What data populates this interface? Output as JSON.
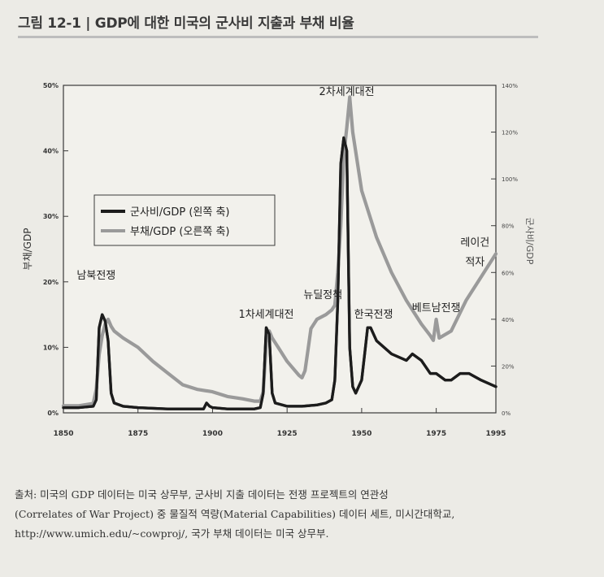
{
  "figure": {
    "title": "그림 12-1 | GDP에 대한 미국의 군사비 지출과 부채 비율"
  },
  "chart_data": {
    "type": "line",
    "title": "그림 12-1 | GDP에 대한 미국의 군사비 지출과 부채 비율",
    "xlabel": "",
    "ylabel": "부채/GDP",
    "ylabel_right": "군사비/GDP",
    "xlim": [
      1850,
      1995
    ],
    "ylim": [
      0,
      50
    ],
    "ylim_right": [
      0,
      140
    ],
    "x_ticks": [
      "1850",
      "1875",
      "1900",
      "1925",
      "1950",
      "1975",
      "1995"
    ],
    "x_tick_values": [
      1850,
      1875,
      1900,
      1925,
      1950,
      1975,
      1995
    ],
    "y_ticks": [
      "0%",
      "10%",
      "20%",
      "30%",
      "40%",
      "50%"
    ],
    "y_tick_values": [
      0,
      10,
      20,
      30,
      40,
      50
    ],
    "y_ticks_right": [
      "0%",
      "20%",
      "40%",
      "60%",
      "80%",
      "100%",
      "120%",
      "140%"
    ],
    "y_tick_values_right": [
      0,
      20,
      40,
      60,
      80,
      100,
      120,
      140
    ],
    "grid": false,
    "legend_position": "upper-left",
    "series": [
      {
        "name": "군사비/GDP (왼쪽 축)",
        "axis": "left",
        "color": "#1c1c1c",
        "x": [
          1850,
          1855,
          1860,
          1861,
          1862,
          1863,
          1864,
          1865,
          1866,
          1867,
          1870,
          1875,
          1880,
          1885,
          1890,
          1897,
          1898,
          1899,
          1900,
          1905,
          1910,
          1914,
          1916,
          1917,
          1918,
          1919,
          1920,
          1921,
          1925,
          1930,
          1935,
          1938,
          1940,
          1941,
          1942,
          1943,
          1944,
          1945,
          1946,
          1947,
          1948,
          1949,
          1950,
          1951,
          1952,
          1953,
          1955,
          1960,
          1965,
          1967,
          1970,
          1973,
          1975,
          1978,
          1980,
          1983,
          1986,
          1990,
          1995
        ],
        "y": [
          0.8,
          0.8,
          1,
          2,
          13,
          15,
          14,
          11,
          3,
          1.5,
          1,
          0.8,
          0.7,
          0.6,
          0.6,
          0.6,
          1.5,
          1,
          0.8,
          0.6,
          0.6,
          0.6,
          0.8,
          3,
          13,
          12,
          3,
          1.5,
          1,
          1,
          1.2,
          1.5,
          2,
          5,
          17,
          38,
          42,
          40,
          10,
          4,
          3,
          4,
          5,
          9,
          13,
          13,
          11,
          9,
          8,
          9,
          8,
          6,
          6,
          5,
          5,
          6,
          6,
          5,
          4
        ]
      },
      {
        "name": "부채/GDP (오른쪽 축)",
        "axis": "right",
        "color": "#9a9a9a",
        "x": [
          1850,
          1855,
          1860,
          1861,
          1862,
          1863,
          1864,
          1865,
          1866,
          1867,
          1870,
          1875,
          1880,
          1885,
          1890,
          1895,
          1900,
          1905,
          1910,
          1914,
          1916,
          1917,
          1918,
          1919,
          1920,
          1921,
          1922,
          1925,
          1929,
          1930,
          1931,
          1932,
          1933,
          1935,
          1938,
          1940,
          1941,
          1942,
          1943,
          1944,
          1945,
          1946,
          1947,
          1950,
          1955,
          1960,
          1965,
          1970,
          1973,
          1974,
          1975,
          1976,
          1980,
          1985,
          1990,
          1995
        ],
        "y": [
          3,
          3,
          4,
          10,
          25,
          33,
          38,
          40,
          37,
          35,
          32,
          28,
          22,
          17,
          12,
          10,
          9,
          7,
          6,
          5,
          5,
          9,
          30,
          35,
          32,
          30,
          28,
          22,
          16,
          15,
          18,
          27,
          36,
          40,
          42,
          44,
          46,
          60,
          80,
          110,
          122,
          135,
          120,
          95,
          75,
          60,
          48,
          38,
          33,
          31,
          40,
          32,
          35,
          48,
          58,
          68
        ]
      }
    ],
    "annotations": [
      {
        "text": "남북전쟁",
        "x": 1861,
        "y": 20.5
      },
      {
        "text": "1차세계대전",
        "x": 1918,
        "y": 14.5
      },
      {
        "text": "뉴딜정책",
        "x": 1937,
        "y": 17.5
      },
      {
        "text": "2차세계대전",
        "x": 1945,
        "y": 48.5
      },
      {
        "text": "한국전쟁",
        "x": 1954,
        "y": 14.5
      },
      {
        "text": "베트남전쟁",
        "x": 1975,
        "y": 15.5
      },
      {
        "text": "레이건",
        "x": 1988,
        "y": 25.5
      },
      {
        "text": "적자",
        "x": 1988,
        "y": 22.5
      }
    ]
  },
  "source": {
    "lines": [
      "출처: 미국의 GDP 데이터는 미국 상무부, 군사비 지출 데이터는 전쟁 프로젝트의 연관성",
      "(Correlates of War Project) 중 물질적 역량(Material Capabilities) 데이터 세트, 미시간대학교,",
      "http://www.umich.edu/~cowproj/, 국가 부채 데이터는 미국 상무부."
    ]
  }
}
